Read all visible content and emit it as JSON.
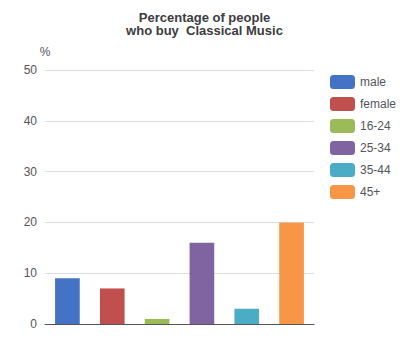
{
  "chart_data": {
    "type": "bar",
    "title": "Percentage of people\nwho buy  Classical Music",
    "ylabel": "%",
    "categories": [
      "male",
      "female",
      "16-24",
      "25-34",
      "35-44",
      "45+"
    ],
    "values": [
      9,
      7,
      1,
      16,
      3,
      20
    ],
    "colors": [
      "#4472C4",
      "#C0504D",
      "#9BBB59",
      "#8064A2",
      "#4BACC6",
      "#F79646"
    ],
    "ylim": [
      0,
      50
    ],
    "yticks": [
      0,
      10,
      20,
      30,
      40,
      50
    ],
    "grid": true,
    "legend": "right",
    "tick_labels": "y"
  }
}
